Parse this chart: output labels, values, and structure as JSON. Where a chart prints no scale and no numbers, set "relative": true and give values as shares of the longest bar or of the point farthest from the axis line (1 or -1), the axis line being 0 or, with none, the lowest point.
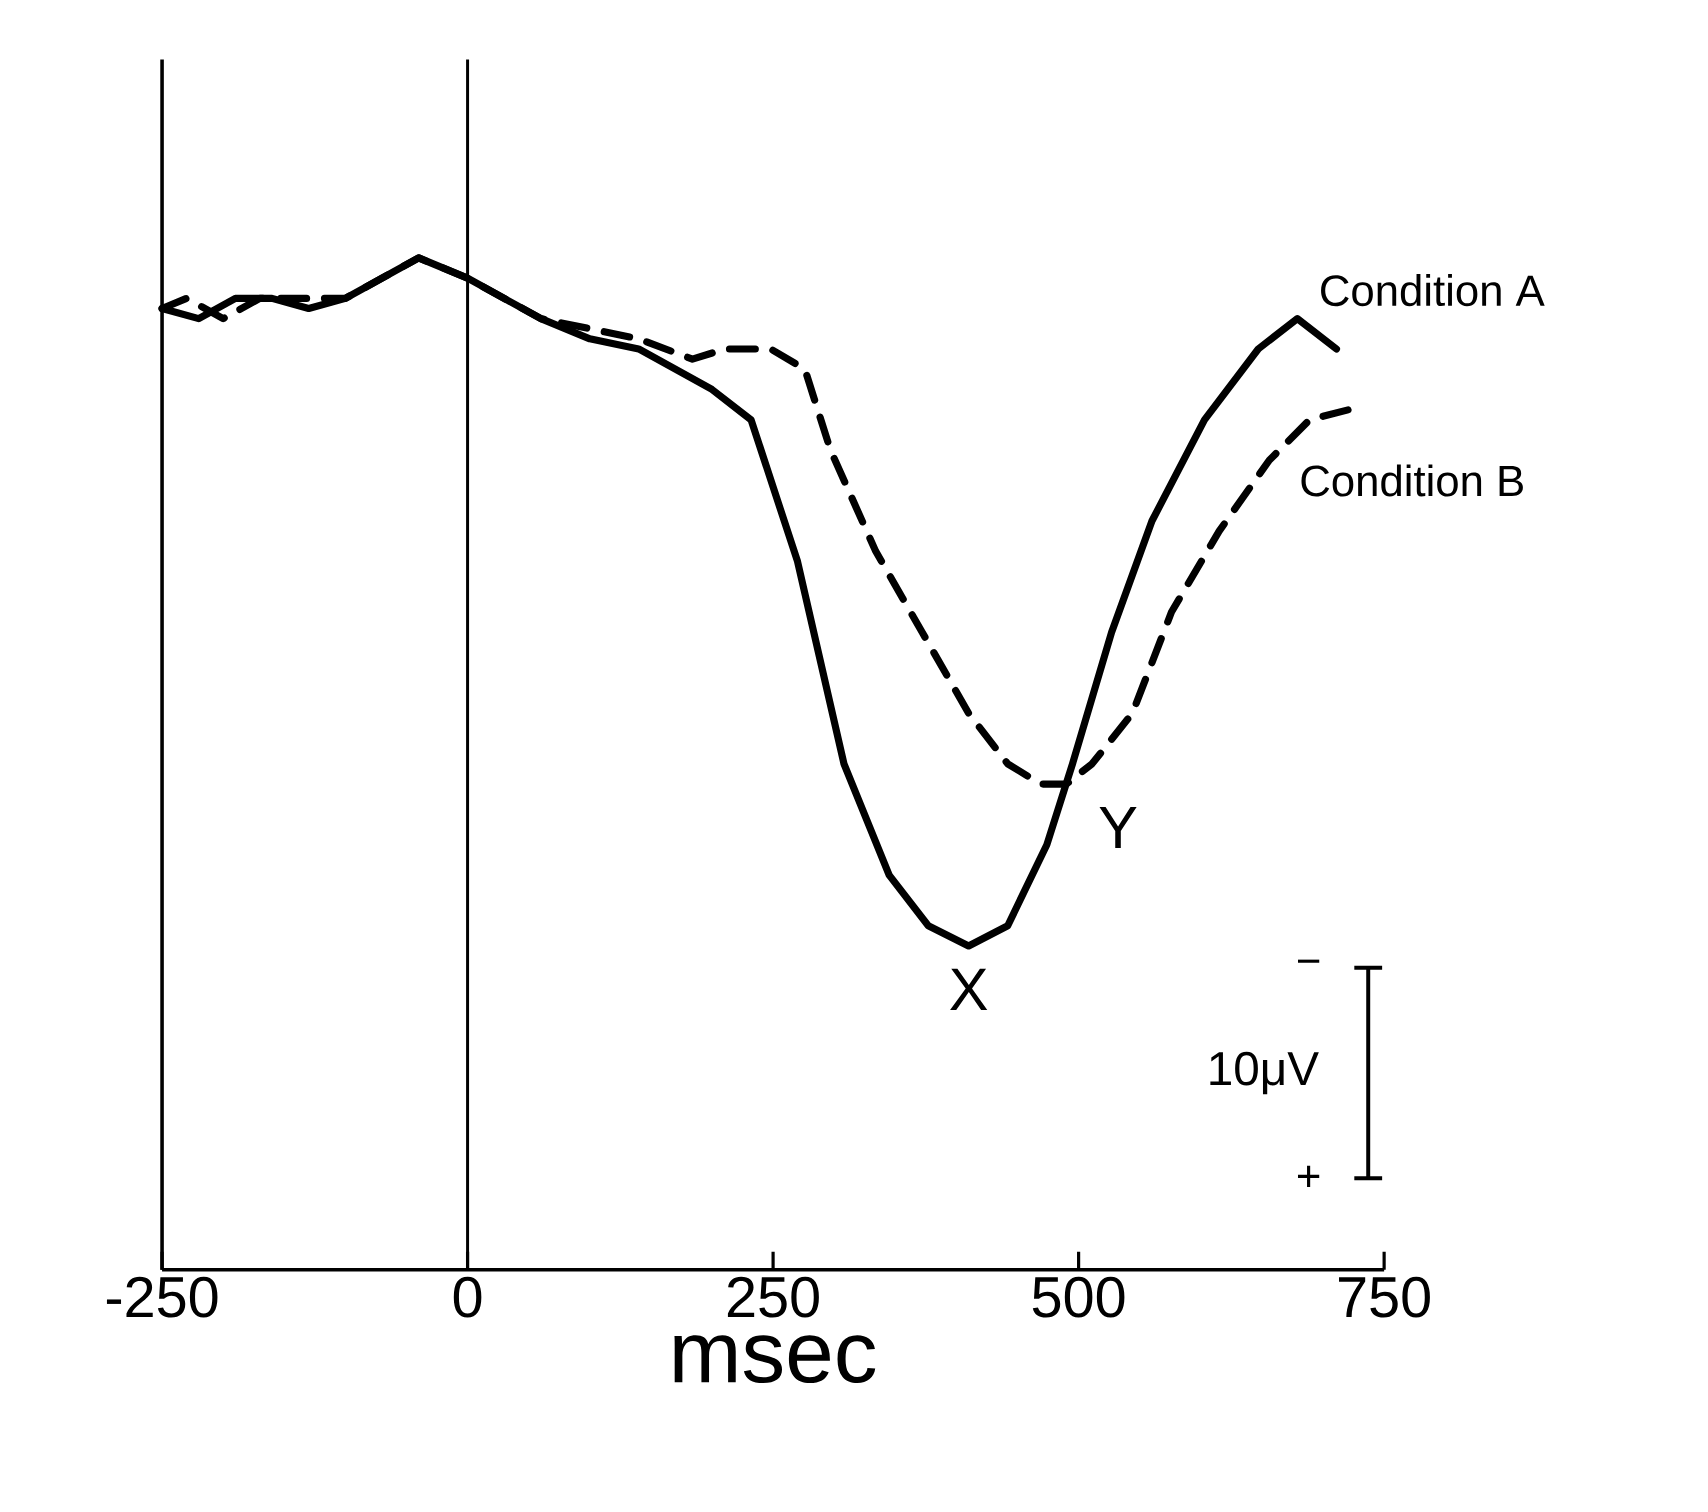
{
  "chart_data": {
    "type": "line",
    "relative": true,
    "xlabel": "msec",
    "xlim": [
      -250,
      750
    ],
    "xticks": [
      -250,
      0,
      250,
      500,
      750
    ],
    "legend": false,
    "grid": false,
    "marker": "none",
    "series": [
      {
        "name": "Condition A",
        "color": "#000000",
        "line_style": "solid",
        "x": [
          -250,
          -220,
          -190,
          -160,
          -130,
          -100,
          -70,
          -40,
          0,
          30,
          60,
          100,
          140,
          170,
          200,
          232,
          270,
          308,
          345,
          377,
          410,
          442,
          474,
          495,
          527,
          560,
          603,
          647,
          679,
          711
        ],
        "values": [
          0.95,
          0.94,
          0.96,
          0.96,
          0.95,
          0.96,
          0.98,
          1.0,
          0.98,
          0.96,
          0.94,
          0.92,
          0.91,
          0.89,
          0.87,
          0.84,
          0.7,
          0.5,
          0.39,
          0.34,
          0.32,
          0.34,
          0.42,
          0.5,
          0.63,
          0.74,
          0.84,
          0.91,
          0.94,
          0.91
        ]
      },
      {
        "name": "Condition B",
        "color": "#000000",
        "line_style": "dashed",
        "x": [
          -250,
          -230,
          -200,
          -170,
          -130,
          -100,
          -70,
          -40,
          0,
          60,
          100,
          140,
          184,
          211,
          248,
          276,
          297,
          334,
          372,
          410,
          442,
          469,
          490,
          511,
          544,
          576,
          615,
          656,
          689,
          721
        ],
        "values": [
          0.95,
          0.96,
          0.94,
          0.96,
          0.96,
          0.96,
          0.98,
          1.0,
          0.98,
          0.94,
          0.93,
          0.92,
          0.9,
          0.91,
          0.91,
          0.89,
          0.81,
          0.71,
          0.63,
          0.55,
          0.5,
          0.48,
          0.48,
          0.5,
          0.55,
          0.65,
          0.73,
          0.8,
          0.84,
          0.85
        ]
      }
    ],
    "ref_lines": [
      {
        "axis": "x",
        "value": 0
      }
    ],
    "annotations": [
      {
        "text": "X",
        "x": 410,
        "y": 0.32
      },
      {
        "text": "Y",
        "x": 490,
        "y": 0.48
      },
      "−",
      "10μV",
      "+"
    ]
  }
}
